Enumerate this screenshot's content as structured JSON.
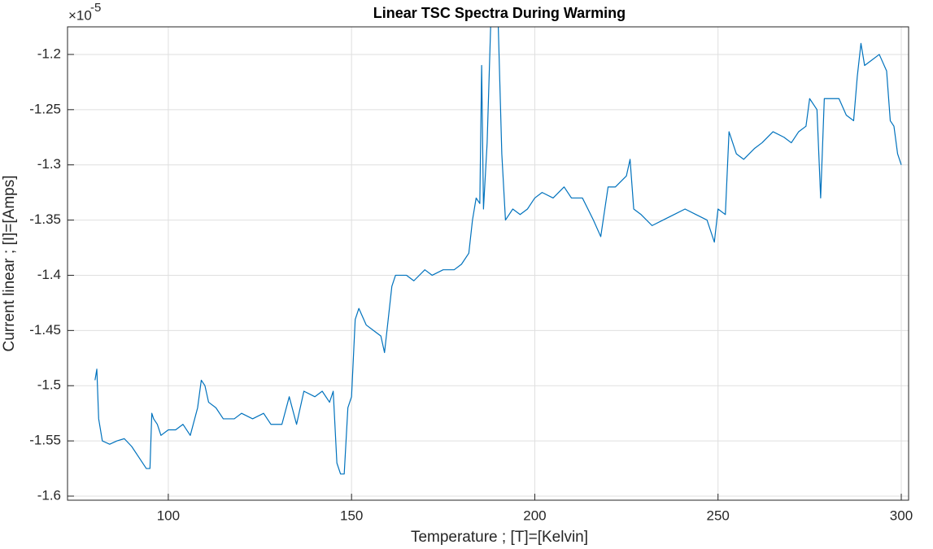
{
  "chart_data": {
    "type": "line",
    "title": "Linear TSC Spectra During Warming",
    "x_label": "Temperature ; [T]=[Kelvin]",
    "y_label": "Current linear ; [I]=[Amps]",
    "y_multiplier_base": "×10",
    "y_multiplier_exponent": "-5",
    "color": "#0072bd",
    "grid": true,
    "xlim": [
      72.5,
      302
    ],
    "ylim": [
      -1.6037,
      -1.175
    ],
    "xticks": [
      100,
      150,
      200,
      250,
      300
    ],
    "yticks": [
      -1.6,
      -1.55,
      -1.5,
      -1.45,
      -1.4,
      -1.35,
      -1.3,
      -1.25,
      -1.2
    ],
    "x": [
      80,
      80.5,
      81,
      82,
      84,
      86,
      88,
      90,
      92,
      94,
      95,
      95.5,
      96,
      97,
      98,
      100,
      102,
      104,
      106,
      108,
      109,
      110,
      111,
      113,
      115,
      118,
      120,
      123,
      126,
      128,
      131,
      133,
      135,
      137,
      140,
      142,
      144,
      145,
      146,
      147,
      148,
      149,
      150,
      151,
      152,
      154,
      156,
      158,
      159,
      160,
      161,
      162,
      165,
      167,
      170,
      172,
      175,
      178,
      180,
      182,
      183,
      184,
      185,
      185.5,
      186,
      187,
      188,
      188.5,
      190,
      191,
      192,
      194,
      196,
      198,
      200,
      202,
      205,
      208,
      210,
      213,
      216,
      218,
      220,
      222,
      225,
      226,
      227,
      229,
      232,
      235,
      238,
      241,
      244,
      247,
      249,
      250,
      252,
      253,
      255,
      257,
      260,
      262,
      265,
      268,
      270,
      272,
      274,
      275,
      277,
      278,
      279,
      281,
      283,
      285,
      287,
      288,
      289,
      290,
      292,
      294,
      296,
      297,
      298,
      299,
      300
    ],
    "values": [
      -1.495,
      -1.485,
      -1.53,
      -1.55,
      -1.553,
      -1.55,
      -1.548,
      -1.555,
      -1.565,
      -1.575,
      -1.575,
      -1.525,
      -1.53,
      -1.535,
      -1.545,
      -1.54,
      -1.54,
      -1.535,
      -1.545,
      -1.52,
      -1.495,
      -1.5,
      -1.515,
      -1.52,
      -1.53,
      -1.53,
      -1.525,
      -1.53,
      -1.525,
      -1.535,
      -1.535,
      -1.51,
      -1.535,
      -1.505,
      -1.51,
      -1.505,
      -1.515,
      -1.505,
      -1.57,
      -1.58,
      -1.58,
      -1.52,
      -1.51,
      -1.44,
      -1.43,
      -1.445,
      -1.45,
      -1.455,
      -1.47,
      -1.44,
      -1.41,
      -1.4,
      -1.4,
      -1.405,
      -1.395,
      -1.4,
      -1.395,
      -1.395,
      -1.39,
      -1.38,
      -1.35,
      -1.33,
      -1.335,
      -1.21,
      -1.34,
      -1.28,
      -1.17,
      -1.16,
      -1.17,
      -1.29,
      -1.35,
      -1.34,
      -1.345,
      -1.34,
      -1.33,
      -1.325,
      -1.33,
      -1.32,
      -1.33,
      -1.33,
      -1.35,
      -1.365,
      -1.32,
      -1.32,
      -1.31,
      -1.295,
      -1.34,
      -1.345,
      -1.355,
      -1.35,
      -1.345,
      -1.34,
      -1.345,
      -1.35,
      -1.37,
      -1.34,
      -1.345,
      -1.27,
      -1.29,
      -1.295,
      -1.285,
      -1.28,
      -1.27,
      -1.275,
      -1.28,
      -1.27,
      -1.265,
      -1.24,
      -1.25,
      -1.33,
      -1.24,
      -1.24,
      -1.24,
      -1.255,
      -1.26,
      -1.22,
      -1.19,
      -1.21,
      -1.205,
      -1.2,
      -1.215,
      -1.26,
      -1.265,
      -1.29,
      -1.3
    ]
  }
}
